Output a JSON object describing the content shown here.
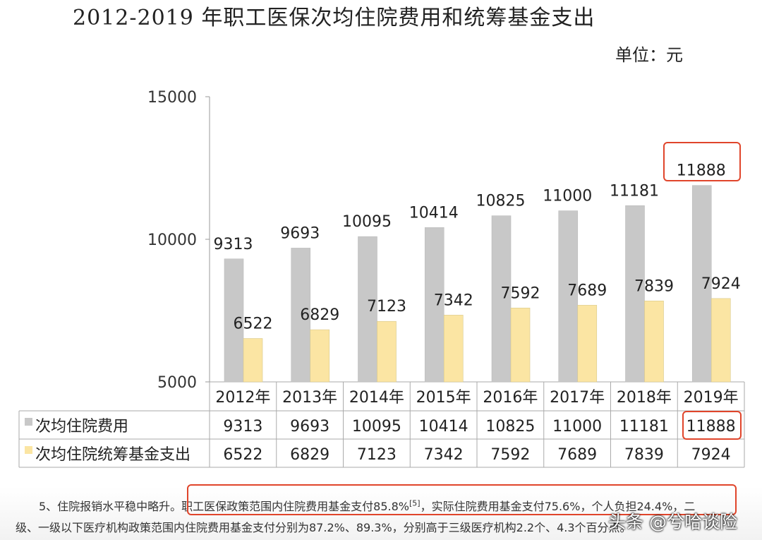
{
  "title": "2012-2019 年职工医保次均住院费用和统筹基金支出",
  "unit": "单位：元",
  "chart_data": {
    "type": "bar",
    "categories": [
      "2012年",
      "2013年",
      "2014年",
      "2015年",
      "2016年",
      "2017年",
      "2018年",
      "2019年"
    ],
    "series": [
      {
        "name": "次均住院费用",
        "color": "#c8c8c8",
        "values": [
          9313,
          9693,
          10095,
          10414,
          10825,
          11000,
          11181,
          11888
        ]
      },
      {
        "name": "次均住院统筹基金支出",
        "color": "#fbe5a3",
        "values": [
          6522,
          6829,
          7123,
          7342,
          7592,
          7689,
          7839,
          7924
        ]
      }
    ],
    "ylim": [
      5000,
      15000
    ],
    "yticks": [
      "5000",
      "10000",
      "15000"
    ],
    "legend": "data-table-bottom"
  },
  "footnote": {
    "line1_a": "5、住院报销水平稳中略升。职工医保政策范围内住院费用基金支付85.8%",
    "line1_sup": "[5]",
    "line1_b": "，实际住院费用基金支付75.6%，个人负担24.4%，二",
    "line2": "级、一级以下医疗机构政策范围内住院费用基金支付分别为87.2%、89.3%，分别高于三级医疗机构2.2个、4.3个百分点。"
  },
  "watermark": "头条 @兮哈谈险"
}
